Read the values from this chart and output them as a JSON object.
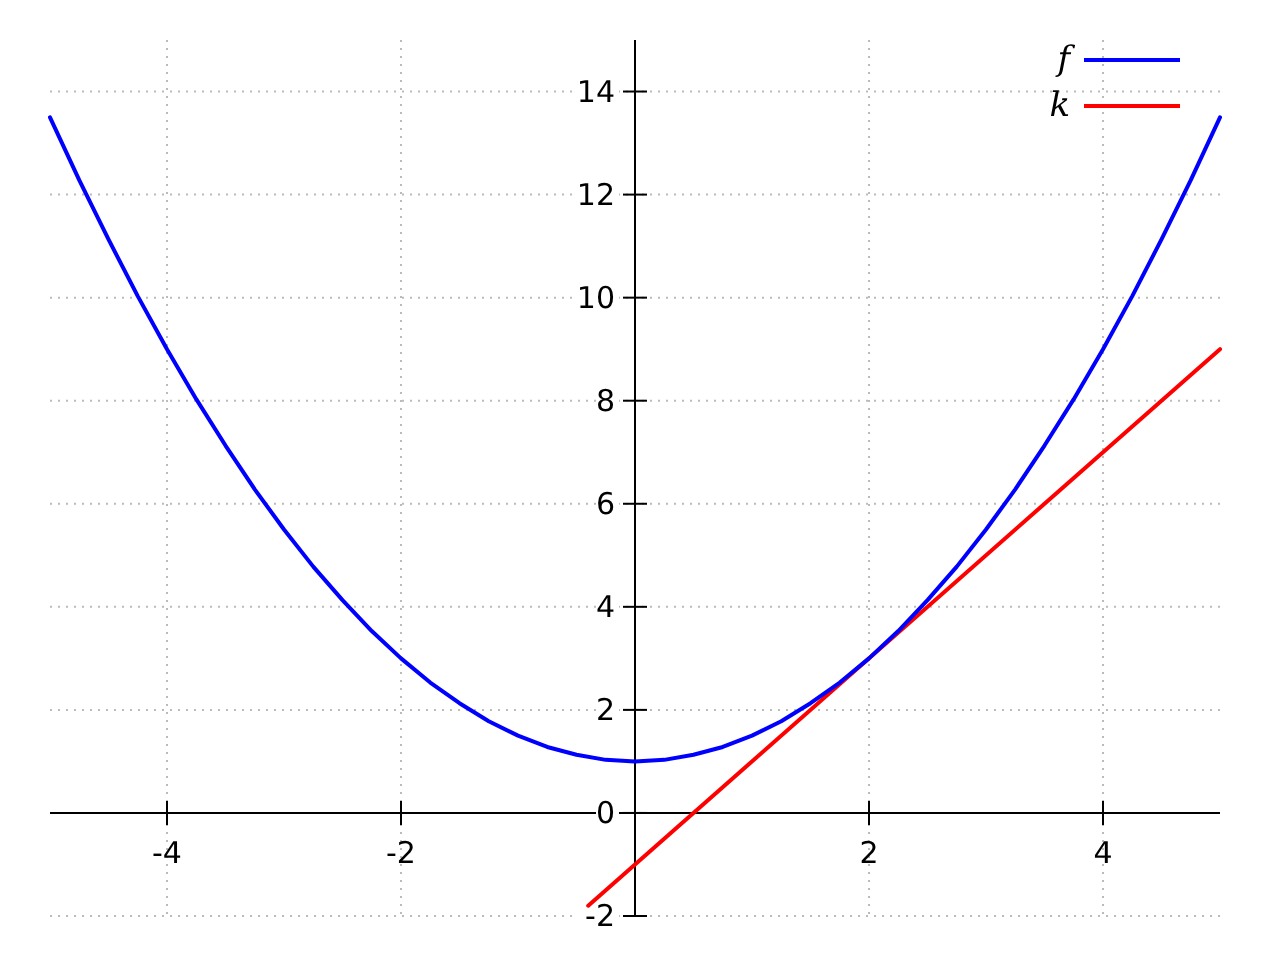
{
  "chart_data": {
    "type": "line",
    "xlim": [
      -5,
      5
    ],
    "ylim": [
      -2,
      15
    ],
    "xticks": [
      -4,
      -2,
      2,
      4
    ],
    "yticks": [
      -2,
      0,
      2,
      4,
      6,
      8,
      10,
      12,
      14
    ],
    "grid": true,
    "legend": "top right",
    "line_style": "solid",
    "series": [
      {
        "name": "f",
        "color": "#0000ff",
        "x": [
          -5,
          -4.75,
          -4.5,
          -4.25,
          -4,
          -3.75,
          -3.5,
          -3.25,
          -3,
          -2.75,
          -2.5,
          -2.25,
          -2,
          -1.75,
          -1.5,
          -1.25,
          -1,
          -0.75,
          -0.5,
          -0.25,
          0,
          0.25,
          0.5,
          0.75,
          1,
          1.25,
          1.5,
          1.75,
          2,
          2.25,
          2.5,
          2.75,
          3,
          3.25,
          3.5,
          3.75,
          4,
          4.25,
          4.5,
          4.75,
          5
        ],
        "values": [
          13.5,
          12.28,
          11.13,
          10.03,
          9,
          8.03,
          7.13,
          6.28,
          5.5,
          4.78,
          4.13,
          3.53,
          3,
          2.53,
          2.13,
          1.78,
          1.5,
          1.28,
          1.13,
          1.03,
          1,
          1.03,
          1.13,
          1.28,
          1.5,
          1.78,
          2.13,
          2.53,
          3,
          3.53,
          4.13,
          4.78,
          5.5,
          6.28,
          7.13,
          8.03,
          9,
          10.03,
          11.13,
          12.28,
          13.5
        ]
      },
      {
        "name": "k",
        "color": "#ff0000",
        "x": [
          -0.4,
          5
        ],
        "values": [
          -1.8,
          9
        ]
      }
    ]
  }
}
